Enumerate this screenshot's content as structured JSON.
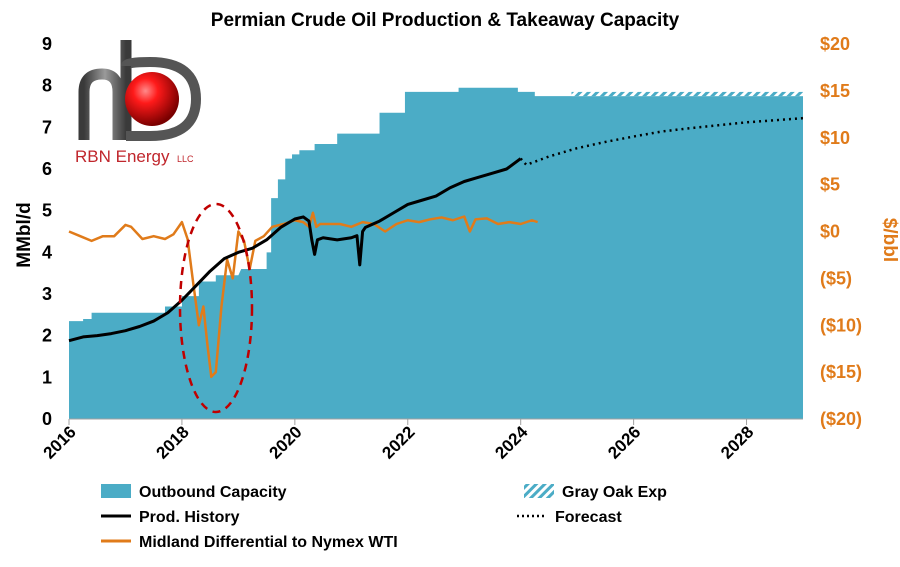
{
  "chart_data": {
    "type": "area",
    "title": "Permian Crude Oil Production & Takeaway Capacity",
    "ylabel": "MMbl/d",
    "y2label": "$/bbl",
    "ylim": [
      0,
      9
    ],
    "y2lim": [
      -20,
      20
    ],
    "xlim": [
      2016,
      2029
    ],
    "x_ticks": [
      "2016",
      "2018",
      "2020",
      "2022",
      "2024",
      "2026",
      "2028"
    ],
    "y_ticks": [
      "0",
      "1",
      "2",
      "3",
      "4",
      "5",
      "6",
      "7",
      "8",
      "9"
    ],
    "y2_ticks": [
      "($20)",
      "($15)",
      "($10)",
      "($5)",
      "$0",
      "$5",
      "$10",
      "$15",
      "$20"
    ],
    "series": [
      {
        "name": "Outbound Capacity",
        "type": "area",
        "color": "#4BACC6",
        "x": [
          2016.0,
          2016.25,
          2016.25,
          2016.4,
          2016.4,
          2017.7,
          2017.7,
          2018.0,
          2018.0,
          2018.3,
          2018.3,
          2018.6,
          2018.6,
          2019.0,
          2019.05,
          2019.5,
          2019.5,
          2019.58,
          2019.58,
          2019.7,
          2019.7,
          2019.83,
          2019.83,
          2019.95,
          2019.95,
          2020.08,
          2020.08,
          2020.35,
          2020.35,
          2020.75,
          2020.75,
          2021.5,
          2021.5,
          2021.95,
          2021.95,
          2022.9,
          2022.9,
          2023.95,
          2023.95,
          2024.25,
          2024.25,
          2029.0
        ],
        "values": [
          2.35,
          2.35,
          2.4,
          2.4,
          2.55,
          2.55,
          2.7,
          2.7,
          2.95,
          2.95,
          3.3,
          3.3,
          3.45,
          3.45,
          3.6,
          3.6,
          4.0,
          4.0,
          5.3,
          5.3,
          5.75,
          5.75,
          6.25,
          6.25,
          6.35,
          6.35,
          6.45,
          6.45,
          6.6,
          6.6,
          6.85,
          6.85,
          7.35,
          7.35,
          7.85,
          7.85,
          7.95,
          7.95,
          7.85,
          7.85,
          7.75,
          7.75
        ]
      },
      {
        "name": "Gray Oak Exp",
        "type": "area-hatched",
        "color": "#4BACC6",
        "x": [
          2024.9,
          2029.0
        ],
        "values": [
          7.85,
          7.85
        ]
      },
      {
        "name": "Prod. History",
        "type": "line",
        "color": "#000000",
        "x": [
          2016.0,
          2016.25,
          2016.5,
          2016.75,
          2017.0,
          2017.25,
          2017.5,
          2017.75,
          2018.0,
          2018.25,
          2018.5,
          2018.75,
          2019.0,
          2019.25,
          2019.5,
          2019.75,
          2020.0,
          2020.15,
          2020.25,
          2020.3,
          2020.35,
          2020.4,
          2020.5,
          2020.75,
          2021.0,
          2021.1,
          2021.15,
          2021.2,
          2021.25,
          2021.5,
          2021.75,
          2022.0,
          2022.25,
          2022.5,
          2022.75,
          2023.0,
          2023.25,
          2023.5,
          2023.75,
          2024.0
        ],
        "values": [
          1.88,
          1.97,
          2.0,
          2.05,
          2.12,
          2.22,
          2.35,
          2.55,
          2.85,
          3.2,
          3.55,
          3.85,
          4.0,
          4.1,
          4.3,
          4.6,
          4.8,
          4.85,
          4.75,
          4.3,
          3.95,
          4.3,
          4.35,
          4.3,
          4.35,
          4.4,
          3.7,
          4.5,
          4.6,
          4.75,
          4.95,
          5.15,
          5.25,
          5.35,
          5.55,
          5.7,
          5.8,
          5.9,
          6.0,
          6.25
        ]
      },
      {
        "name": "Forecast",
        "type": "line-dotted",
        "color": "#000000",
        "x": [
          2024.0,
          2024.1,
          2024.5,
          2025.0,
          2025.5,
          2026.0,
          2026.5,
          2027.0,
          2027.5,
          2028.0,
          2028.5,
          2029.0
        ],
        "values": [
          6.25,
          6.1,
          6.3,
          6.5,
          6.65,
          6.78,
          6.9,
          6.98,
          7.05,
          7.12,
          7.17,
          7.22
        ]
      },
      {
        "name": "Midland Differential to Nymex WTI",
        "type": "line",
        "axis": "right",
        "color": "#E07B1A",
        "x": [
          2016.0,
          2016.2,
          2016.4,
          2016.6,
          2016.8,
          2017.0,
          2017.1,
          2017.3,
          2017.5,
          2017.7,
          2017.85,
          2018.0,
          2018.1,
          2018.2,
          2018.3,
          2018.38,
          2018.45,
          2018.52,
          2018.6,
          2018.7,
          2018.8,
          2018.9,
          2019.0,
          2019.1,
          2019.2,
          2019.3,
          2019.45,
          2019.6,
          2019.8,
          2020.0,
          2020.15,
          2020.25,
          2020.32,
          2020.38,
          2020.45,
          2020.6,
          2020.8,
          2021.0,
          2021.2,
          2021.4,
          2021.6,
          2021.8,
          2022.0,
          2022.2,
          2022.4,
          2022.6,
          2022.8,
          2023.0,
          2023.1,
          2023.2,
          2023.4,
          2023.6,
          2023.8,
          2024.0,
          2024.2,
          2024.3
        ],
        "values": [
          0.0,
          -0.5,
          -1.0,
          -0.5,
          -0.5,
          0.7,
          0.5,
          -0.8,
          -0.5,
          -0.8,
          -0.3,
          1.0,
          -0.8,
          -5.5,
          -10.0,
          -8.0,
          -12.0,
          -15.5,
          -15.0,
          -8.0,
          -3.0,
          -5.0,
          0.0,
          -1.0,
          -4.0,
          -1.0,
          -0.5,
          0.5,
          0.8,
          1.2,
          1.0,
          0.5,
          2.0,
          0.5,
          0.8,
          0.8,
          0.8,
          0.5,
          1.0,
          0.8,
          0.0,
          0.8,
          1.2,
          1.0,
          1.3,
          1.5,
          1.2,
          1.6,
          0.0,
          1.3,
          1.4,
          0.8,
          1.0,
          0.8,
          1.2,
          1.0
        ]
      }
    ],
    "annotation": "dashed red ellipse highlighting 2018 differential collapse",
    "legend_position": "bottom"
  },
  "logo": {
    "brand": "RBN Energy",
    "suffix": "LLC"
  },
  "colors": {
    "capacity": "#4BACC6",
    "production": "#000000",
    "differential": "#E07B1A",
    "ellipse": "#C00000",
    "logo_red": "#E00000"
  }
}
